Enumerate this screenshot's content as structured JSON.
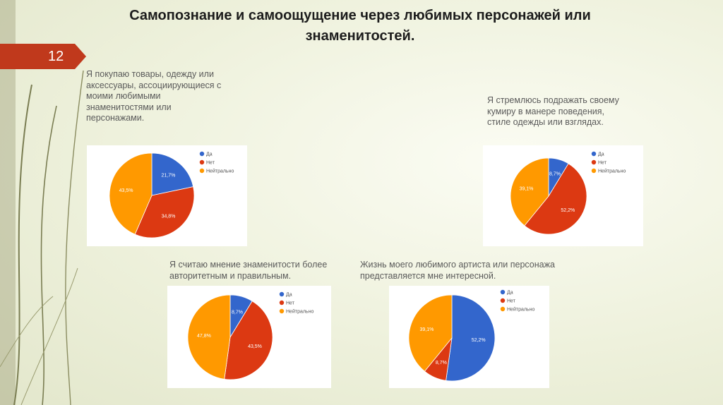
{
  "title": "Самопознание и самоощущение через любимых персонажей или знаменитостей.",
  "slide_number": "12",
  "colors": {
    "accent": "#c0391c",
    "da": "#3366cc",
    "net": "#dc3912",
    "neutral": "#ff9900"
  },
  "chart_data": [
    {
      "type": "pie",
      "caption": "Я покупаю товары, одежду или аксессуары, ассоциирующиеся с моими любимыми знаменитостями или персонажами.",
      "categories": [
        "Да",
        "Нет",
        "Нейтрально"
      ],
      "values": [
        21.7,
        34.8,
        43.5
      ],
      "labels": [
        "21,7%",
        "34,8%",
        "43,5%"
      ],
      "legend": "right"
    },
    {
      "type": "pie",
      "caption": "Я стремлюсь подражать своему кумиру в манере поведения, стиле одежды или взглядах.",
      "categories": [
        "Да",
        "Нет",
        "Нейтрально"
      ],
      "values": [
        8.7,
        52.2,
        39.1
      ],
      "labels": [
        "8,7%",
        "52,2%",
        "39,1%"
      ],
      "legend": "right"
    },
    {
      "type": "pie",
      "caption": "Я считаю мнение знаменитости более авторитетным и правильным.",
      "categories": [
        "Да",
        "Нет",
        "Нейтрально"
      ],
      "values": [
        8.7,
        43.5,
        47.8
      ],
      "labels": [
        "8,7%",
        "43,5%",
        "47,8%"
      ],
      "legend": "right"
    },
    {
      "type": "pie",
      "caption": "Жизнь моего любимого артиста или персонажа представляется мне интересной.",
      "categories": [
        "Да",
        "Нет",
        "Нейтрально"
      ],
      "values": [
        52.2,
        8.7,
        39.1
      ],
      "labels": [
        "52,2%",
        "8,7%",
        "39,1%"
      ],
      "legend": "right"
    }
  ]
}
